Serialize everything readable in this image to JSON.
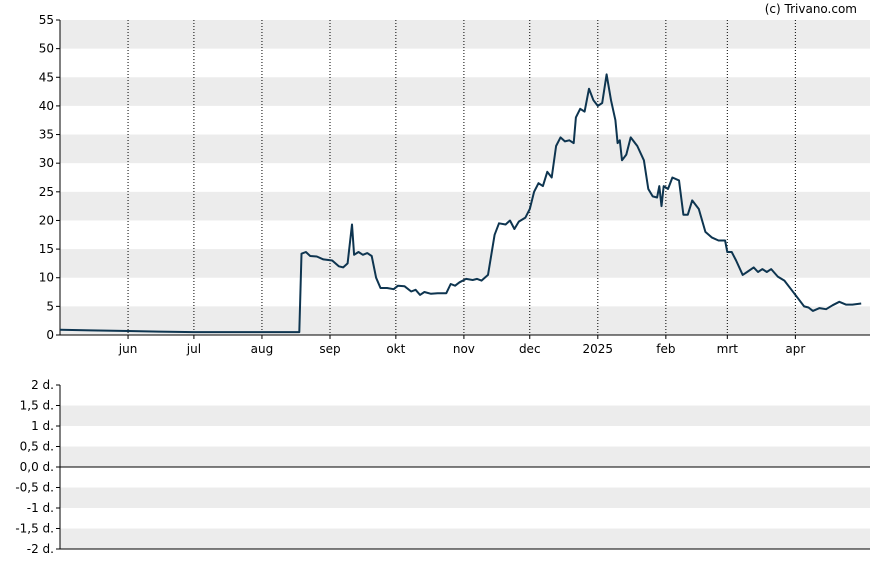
{
  "credit": "(c) Trivano.com",
  "chart_data": [
    {
      "type": "line",
      "title": "",
      "xlabel": "",
      "ylabel": "",
      "ylim": [
        0,
        55
      ],
      "yticks": [
        "0",
        "5",
        "10",
        "15",
        "20",
        "25",
        "30",
        "35",
        "40",
        "45",
        "50",
        "55"
      ],
      "xticks": [
        {
          "label": "jun",
          "date": "2024-06-01"
        },
        {
          "label": "jul",
          "date": "2024-07-01"
        },
        {
          "label": "aug",
          "date": "2024-08-01"
        },
        {
          "label": "sep",
          "date": "2024-09-01"
        },
        {
          "label": "okt",
          "date": "2024-10-01"
        },
        {
          "label": "nov",
          "date": "2024-11-01"
        },
        {
          "label": "dec",
          "date": "2024-12-01"
        },
        {
          "label": "2025",
          "date": "2025-01-01"
        },
        {
          "label": "feb",
          "date": "2025-02-01"
        },
        {
          "label": "mrt",
          "date": "2025-03-01"
        },
        {
          "label": "apr",
          "date": "2025-04-01"
        }
      ],
      "xlim": [
        "2024-05-01",
        "2025-05-05"
      ],
      "grid": true,
      "line_color": "#0e3550",
      "series": [
        {
          "name": "",
          "points": [
            [
              "2024-05-01",
              0.9
            ],
            [
              "2024-05-15",
              0.8
            ],
            [
              "2024-06-01",
              0.7
            ],
            [
              "2024-06-15",
              0.6
            ],
            [
              "2024-07-01",
              0.5
            ],
            [
              "2024-07-15",
              0.5
            ],
            [
              "2024-08-01",
              0.5
            ],
            [
              "2024-08-10",
              0.5
            ],
            [
              "2024-08-18",
              0.5
            ],
            [
              "2024-08-19",
              14.2
            ],
            [
              "2024-08-21",
              14.5
            ],
            [
              "2024-08-23",
              13.8
            ],
            [
              "2024-08-26",
              13.7
            ],
            [
              "2024-08-29",
              13.2
            ],
            [
              "2024-09-02",
              13.0
            ],
            [
              "2024-09-05",
              12.0
            ],
            [
              "2024-09-07",
              11.8
            ],
            [
              "2024-09-09",
              12.5
            ],
            [
              "2024-09-11",
              19.3
            ],
            [
              "2024-09-12",
              14.0
            ],
            [
              "2024-09-14",
              14.5
            ],
            [
              "2024-09-16",
              14.0
            ],
            [
              "2024-09-18",
              14.3
            ],
            [
              "2024-09-20",
              13.8
            ],
            [
              "2024-09-22",
              10.0
            ],
            [
              "2024-09-24",
              8.2
            ],
            [
              "2024-09-27",
              8.2
            ],
            [
              "2024-09-30",
              8.0
            ],
            [
              "2024-10-02",
              8.6
            ],
            [
              "2024-10-05",
              8.5
            ],
            [
              "2024-10-08",
              7.6
            ],
            [
              "2024-10-10",
              7.9
            ],
            [
              "2024-10-12",
              7.0
            ],
            [
              "2024-10-14",
              7.5
            ],
            [
              "2024-10-17",
              7.2
            ],
            [
              "2024-10-20",
              7.3
            ],
            [
              "2024-10-24",
              7.3
            ],
            [
              "2024-10-26",
              8.9
            ],
            [
              "2024-10-28",
              8.6
            ],
            [
              "2024-10-30",
              9.2
            ],
            [
              "2024-11-02",
              9.8
            ],
            [
              "2024-11-05",
              9.6
            ],
            [
              "2024-11-07",
              9.8
            ],
            [
              "2024-11-09",
              9.5
            ],
            [
              "2024-11-12",
              10.5
            ],
            [
              "2024-11-15",
              17.5
            ],
            [
              "2024-11-17",
              19.5
            ],
            [
              "2024-11-20",
              19.3
            ],
            [
              "2024-11-22",
              20.0
            ],
            [
              "2024-11-24",
              18.5
            ],
            [
              "2024-11-26",
              19.8
            ],
            [
              "2024-11-29",
              20.5
            ],
            [
              "2024-12-01",
              22.0
            ],
            [
              "2024-12-03",
              25.0
            ],
            [
              "2024-12-05",
              26.5
            ],
            [
              "2024-12-07",
              26.0
            ],
            [
              "2024-12-09",
              28.5
            ],
            [
              "2024-12-11",
              27.5
            ],
            [
              "2024-12-13",
              33.0
            ],
            [
              "2024-12-15",
              34.5
            ],
            [
              "2024-12-17",
              33.8
            ],
            [
              "2024-12-19",
              34.0
            ],
            [
              "2024-12-21",
              33.5
            ],
            [
              "2024-12-22",
              38.0
            ],
            [
              "2024-12-24",
              39.5
            ],
            [
              "2024-12-26",
              39.0
            ],
            [
              "2024-12-28",
              43.0
            ],
            [
              "2024-12-30",
              41.0
            ],
            [
              "2025-01-01",
              40.0
            ],
            [
              "2025-01-03",
              40.5
            ],
            [
              "2025-01-05",
              45.5
            ],
            [
              "2025-01-07",
              41.0
            ],
            [
              "2025-01-09",
              37.5
            ],
            [
              "2025-01-10",
              33.5
            ],
            [
              "2025-01-11",
              34.0
            ],
            [
              "2025-01-12",
              30.5
            ],
            [
              "2025-01-14",
              31.5
            ],
            [
              "2025-01-16",
              34.5
            ],
            [
              "2025-01-19",
              33.0
            ],
            [
              "2025-01-22",
              30.5
            ],
            [
              "2025-01-24",
              25.5
            ],
            [
              "2025-01-26",
              24.2
            ],
            [
              "2025-01-28",
              24.0
            ],
            [
              "2025-01-29",
              26.0
            ],
            [
              "2025-01-30",
              22.5
            ],
            [
              "2025-01-31",
              26.0
            ],
            [
              "2025-02-02",
              25.5
            ],
            [
              "2025-02-04",
              27.5
            ],
            [
              "2025-02-07",
              27.0
            ],
            [
              "2025-02-09",
              21.0
            ],
            [
              "2025-02-11",
              21.0
            ],
            [
              "2025-02-13",
              23.5
            ],
            [
              "2025-02-16",
              22.0
            ],
            [
              "2025-02-19",
              18.0
            ],
            [
              "2025-02-22",
              17.0
            ],
            [
              "2025-02-25",
              16.5
            ],
            [
              "2025-02-28",
              16.5
            ],
            [
              "2025-03-01",
              14.5
            ],
            [
              "2025-03-03",
              14.5
            ],
            [
              "2025-03-05",
              13.0
            ],
            [
              "2025-03-08",
              10.5
            ],
            [
              "2025-03-10",
              11.0
            ],
            [
              "2025-03-13",
              11.8
            ],
            [
              "2025-03-15",
              11.0
            ],
            [
              "2025-03-17",
              11.5
            ],
            [
              "2025-03-19",
              11.0
            ],
            [
              "2025-03-21",
              11.5
            ],
            [
              "2025-03-24",
              10.2
            ],
            [
              "2025-03-27",
              9.5
            ],
            [
              "2025-03-30",
              8.0
            ],
            [
              "2025-04-02",
              6.5
            ],
            [
              "2025-04-05",
              5.0
            ],
            [
              "2025-04-07",
              4.8
            ],
            [
              "2025-04-09",
              4.2
            ],
            [
              "2025-04-12",
              4.7
            ],
            [
              "2025-04-15",
              4.5
            ],
            [
              "2025-04-18",
              5.2
            ],
            [
              "2025-04-21",
              5.8
            ],
            [
              "2025-04-24",
              5.3
            ],
            [
              "2025-04-27",
              5.3
            ],
            [
              "2025-05-01",
              5.5
            ]
          ]
        }
      ]
    },
    {
      "type": "line",
      "title": "",
      "xlabel": "",
      "ylabel": "",
      "ylim": [
        -2,
        2
      ],
      "yticks": [
        "-2 d.",
        "-1,5 d.",
        "-1 d.",
        "-0,5 d.",
        "0,0 d.",
        "0,5 d.",
        "1 d.",
        "1,5 d.",
        "2 d."
      ],
      "grid": true,
      "series": []
    }
  ]
}
